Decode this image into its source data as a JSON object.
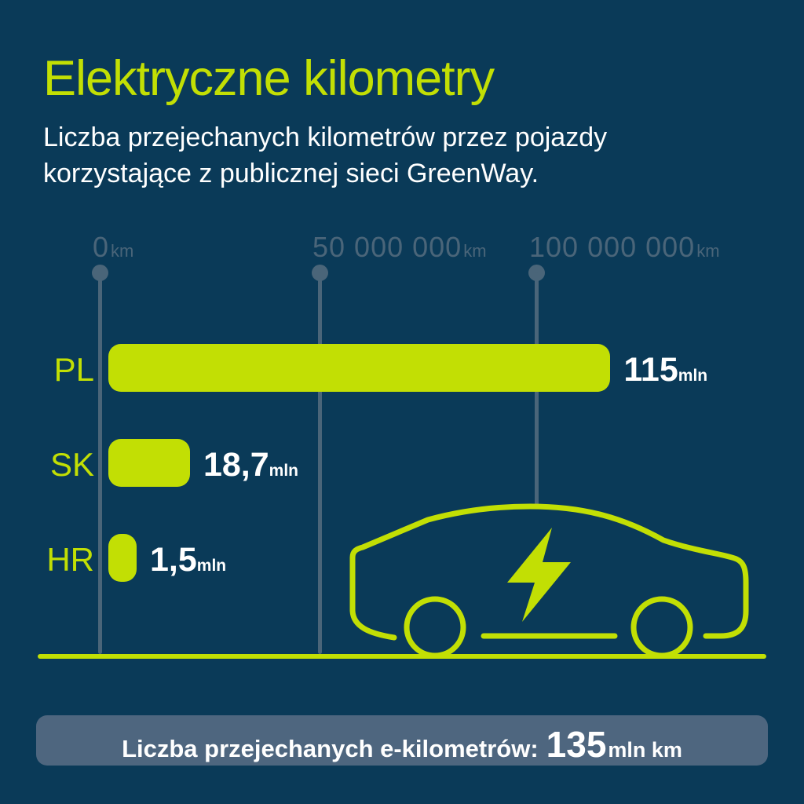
{
  "title": "Elektryczne kilometry",
  "subtitle": {
    "line1": "Liczba przejechanych kilometrów przez pojazdy",
    "line2": "korzystające z publicznej sieci GreenWay."
  },
  "axis": {
    "ticks": [
      {
        "number": "0",
        "unit": "km"
      },
      {
        "number": "50 000 000",
        "unit": "km"
      },
      {
        "number": "100 000 000",
        "unit": "km"
      }
    ]
  },
  "rows": [
    {
      "label": "PL",
      "value_number": "115",
      "value_unit": "mln"
    },
    {
      "label": "SK",
      "value_number": "18,7",
      "value_unit": "mln"
    },
    {
      "label": "HR",
      "value_number": "1,5",
      "value_unit": "mln"
    }
  ],
  "footer": {
    "label": "Liczba przejechanych e-kilometrów:",
    "value": "135",
    "unit": "mln km"
  },
  "colors": {
    "background": "#0a3a58",
    "accent_green": "#c2df04",
    "axis_slate": "#4a6579",
    "footer_background": "#4e667f",
    "text_white": "#ffffff"
  },
  "icons": {
    "car": "car-outline-icon",
    "bolt": "lightning-bolt-icon"
  },
  "chart_data": {
    "type": "bar",
    "orientation": "horizontal",
    "title": "Elektryczne kilometry",
    "subtitle": "Liczba przejechanych kilometrów przez pojazdy korzystające z publicznej sieci GreenWay.",
    "categories": [
      "PL",
      "SK",
      "HR"
    ],
    "values_mln_km": [
      115,
      18.7,
      1.5
    ],
    "value_labels": [
      "115 mln",
      "18,7 mln",
      "1,5 mln"
    ],
    "x_tick_labels": [
      "0 km",
      "50 000 000 km",
      "100 000 000 km"
    ],
    "x_tick_values_km": [
      0,
      50000000,
      100000000
    ],
    "xlim_km": [
      0,
      150000000
    ],
    "grid": "vertical-lines-with-top-dots",
    "legend": "none",
    "bar_color": "#c2df04",
    "annotation_total": "Liczba przejechanych e-kilometrów: 135 mln km"
  }
}
